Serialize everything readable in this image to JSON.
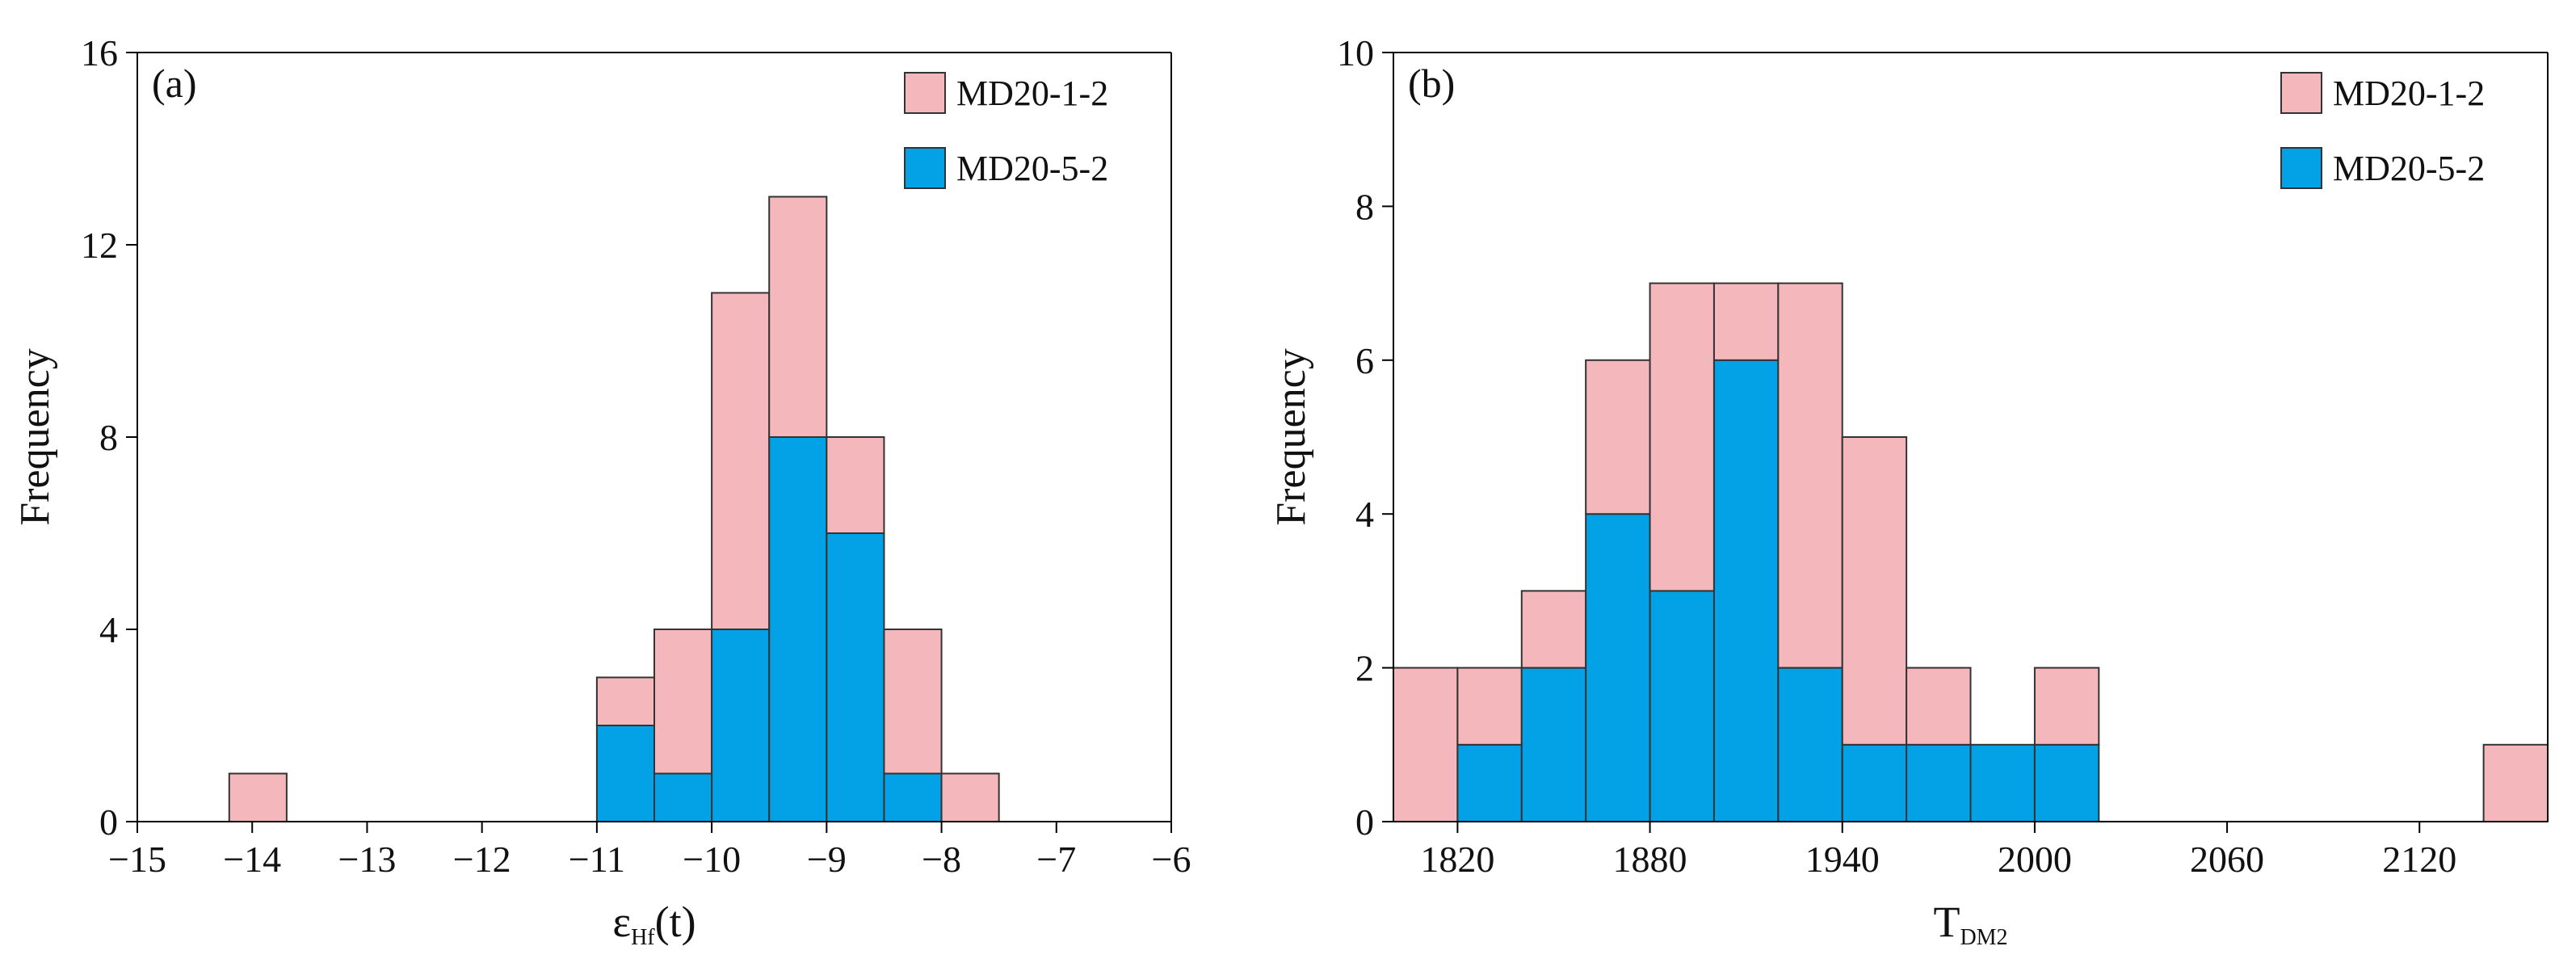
{
  "colors": {
    "MD20-1-2": "#f4b8bc",
    "MD20-5-2": "#03a2e6"
  },
  "chart_data": [
    {
      "type": "bar",
      "subtype": "stacked-histogram",
      "panel_label": "(a)",
      "xlabel_main": "ε",
      "xlabel_sub": "Hf",
      "xlabel_tail": "(t)",
      "ylabel": "Frequency",
      "xlim": [
        -15,
        -6
      ],
      "ylim": [
        0,
        16
      ],
      "xticks": [
        -15,
        -14,
        -13,
        -12,
        -11,
        -10,
        -9,
        -8,
        -7,
        -6
      ],
      "xtick_labels": [
        "−15",
        "−14",
        "−13",
        "−12",
        "−11",
        "−10",
        "−9",
        "−8",
        "−7",
        "−6"
      ],
      "yticks": [
        0,
        4,
        8,
        12,
        16
      ],
      "ytick_labels": [
        "0",
        "4",
        "8",
        "12",
        "16"
      ],
      "bin_width": 0.5,
      "bin_starts": [
        -14.2,
        -11.0,
        -10.5,
        -10.0,
        -9.5,
        -9.0,
        -8.5,
        -8.0
      ],
      "series": [
        {
          "name": "MD20-5-2",
          "values": [
            0,
            2,
            1,
            4,
            8,
            6,
            1,
            0
          ]
        },
        {
          "name": "MD20-1-2",
          "values": [
            1,
            1,
            3,
            7,
            5,
            2,
            3,
            1
          ]
        }
      ],
      "legend": {
        "position": "top-right",
        "entries": [
          "MD20-1-2",
          "MD20-5-2"
        ]
      }
    },
    {
      "type": "bar",
      "subtype": "stacked-histogram",
      "panel_label": "(b)",
      "xlabel_main": "T",
      "xlabel_sub": "DM2",
      "ylabel": "Frequency",
      "xlim": [
        1800,
        2160
      ],
      "ylim": [
        0,
        10
      ],
      "xticks": [
        1820,
        1880,
        1940,
        2000,
        2060,
        2120
      ],
      "xtick_labels": [
        "1820",
        "1880",
        "1940",
        "2000",
        "2060",
        "2120"
      ],
      "yticks": [
        0,
        2,
        4,
        6,
        8,
        10
      ],
      "ytick_labels": [
        "0",
        "2",
        "4",
        "6",
        "8",
        "10"
      ],
      "bin_width": 20,
      "bin_starts": [
        1800,
        1820,
        1840,
        1860,
        1880,
        1900,
        1920,
        1940,
        1960,
        1980,
        2000,
        2020,
        2040,
        2060,
        2080,
        2100,
        2120,
        2140
      ],
      "series": [
        {
          "name": "MD20-5-2",
          "values": [
            0,
            1,
            2,
            4,
            3,
            6,
            2,
            1,
            1,
            1,
            1,
            0,
            0,
            0,
            0,
            0,
            0,
            0
          ]
        },
        {
          "name": "MD20-1-2",
          "values": [
            2,
            1,
            1,
            2,
            4,
            1,
            5,
            4,
            1,
            0,
            1,
            0,
            0,
            0,
            0,
            0,
            0,
            1
          ]
        }
      ],
      "legend": {
        "position": "top-right",
        "entries": [
          "MD20-1-2",
          "MD20-5-2"
        ]
      }
    }
  ]
}
